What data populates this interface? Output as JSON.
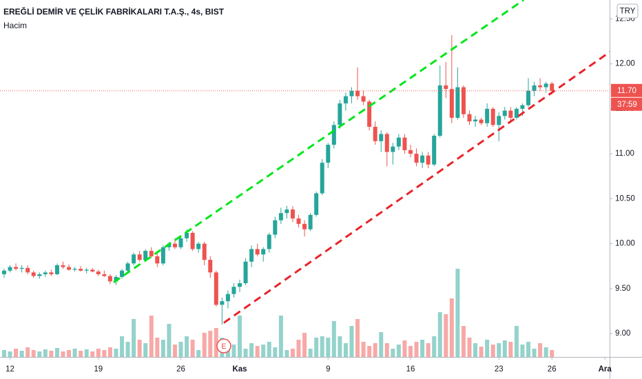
{
  "chart_data": {
    "type": "candlestick",
    "title": "EREĞLİ DEMİR VE ÇELİK FABRİKALARI T.A.Ş., 4s, BIST",
    "subtitle": "Hacim",
    "currency": "TRY",
    "xlim": [
      -0.7,
      102.8
    ],
    "xticks": [
      {
        "value": 1,
        "label": "12"
      },
      {
        "value": 16,
        "label": "19"
      },
      {
        "value": 30,
        "label": "26"
      },
      {
        "value": 40,
        "label": "Kas"
      },
      {
        "value": 55,
        "label": "9"
      },
      {
        "value": 69,
        "label": "16"
      },
      {
        "value": 84,
        "label": "23"
      },
      {
        "value": 93,
        "label": "26"
      },
      {
        "value": 102,
        "label": "Ara"
      }
    ],
    "ylim": [
      8.74,
      12.71
    ],
    "yticks": [
      {
        "value": 9,
        "label": "9.00"
      },
      {
        "value": 9.5,
        "label": "9.50"
      },
      {
        "value": 10,
        "label": "10.00"
      },
      {
        "value": 10.5,
        "label": "10.50"
      },
      {
        "value": 11,
        "label": "11.00"
      },
      {
        "value": 11.5,
        "label": "11.50"
      },
      {
        "value": 12,
        "label": "12.00"
      },
      {
        "value": 12.5,
        "label": "12.50"
      }
    ],
    "grid": false,
    "up_color": "#26a69a",
    "down_color": "#ef5350",
    "open": [
      9.66,
      9.7,
      9.74,
      9.72,
      9.73,
      9.68,
      9.64,
      9.66,
      9.68,
      9.66,
      9.76,
      9.74,
      9.71,
      9.72,
      9.7,
      9.71,
      9.69,
      9.66,
      9.64,
      9.58,
      9.63,
      9.7,
      9.78,
      9.88,
      9.82,
      9.92,
      9.86,
      9.78,
      9.96,
      10.0,
      9.96,
      10.06,
      10.12,
      9.94,
      10.0,
      9.82,
      9.68,
      9.32,
      9.36,
      9.44,
      9.52,
      9.56,
      9.8,
      9.94,
      9.88,
      9.94,
      10.1,
      10.26,
      10.34,
      10.38,
      10.28,
      10.22,
      10.16,
      10.32,
      10.56,
      10.9,
      11.1,
      11.32,
      11.56,
      11.64,
      11.7,
      11.64,
      11.58,
      11.3,
      11.14,
      11.22,
      11.02,
      11.08,
      11.18,
      11.04,
      11.0,
      10.9,
      10.98,
      10.88,
      11.2,
      11.76,
      11.72,
      11.4,
      11.74,
      11.44,
      11.36,
      11.38,
      11.34,
      11.5,
      11.32,
      11.42,
      11.48,
      11.4,
      11.5,
      11.54,
      11.7,
      11.76,
      11.74,
      11.78
    ],
    "high": [
      9.72,
      9.76,
      9.78,
      9.76,
      9.76,
      9.7,
      9.68,
      9.7,
      9.71,
      9.78,
      9.8,
      9.77,
      9.74,
      9.75,
      9.73,
      9.73,
      9.71,
      9.7,
      9.66,
      9.65,
      9.72,
      9.8,
      9.9,
      9.92,
      9.94,
      9.96,
      9.9,
      9.98,
      10.02,
      10.06,
      10.08,
      10.16,
      10.14,
      10.02,
      10.02,
      9.86,
      9.7,
      9.4,
      9.48,
      9.56,
      9.6,
      9.84,
      9.98,
      10.0,
      9.96,
      10.12,
      10.3,
      10.4,
      10.42,
      10.42,
      10.32,
      10.26,
      10.34,
      10.58,
      10.94,
      11.12,
      11.36,
      11.6,
      11.68,
      11.74,
      11.96,
      11.7,
      11.6,
      11.36,
      11.26,
      11.24,
      11.12,
      11.22,
      11.22,
      11.1,
      11.06,
      11.02,
      11.02,
      11.22,
      11.98,
      12.02,
      12.32,
      11.96,
      11.76,
      11.48,
      11.42,
      11.4,
      11.56,
      11.52,
      11.46,
      11.52,
      11.52,
      11.52,
      11.56,
      11.84,
      11.8,
      11.84,
      11.8,
      11.8
    ],
    "low": [
      9.62,
      9.68,
      9.7,
      9.68,
      9.66,
      9.62,
      9.61,
      9.63,
      9.64,
      9.65,
      9.72,
      9.7,
      9.69,
      9.69,
      9.67,
      9.68,
      9.64,
      9.63,
      9.55,
      9.54,
      9.61,
      9.68,
      9.76,
      9.8,
      9.8,
      9.84,
      9.74,
      9.76,
      9.92,
      9.94,
      9.94,
      10.02,
      9.92,
      9.9,
      9.76,
      9.62,
      9.3,
      9.1,
      9.28,
      9.4,
      9.46,
      9.54,
      9.74,
      9.86,
      9.8,
      9.9,
      10.06,
      10.22,
      10.28,
      10.24,
      10.18,
      10.08,
      10.14,
      10.3,
      10.54,
      10.84,
      11.06,
      11.28,
      11.48,
      11.56,
      11.6,
      11.54,
      11.26,
      11.1,
      11.02,
      10.86,
      10.88,
      11.04,
      11.0,
      10.96,
      10.86,
      10.84,
      10.84,
      10.86,
      11.18,
      11.62,
      11.34,
      11.38,
      11.4,
      11.32,
      11.3,
      11.32,
      11.3,
      11.3,
      11.14,
      11.38,
      11.36,
      11.38,
      11.42,
      11.52,
      11.64,
      11.7,
      11.68,
      11.66
    ],
    "close": [
      9.7,
      9.74,
      9.72,
      9.73,
      9.68,
      9.64,
      9.66,
      9.68,
      9.66,
      9.76,
      9.74,
      9.71,
      9.72,
      9.7,
      9.71,
      9.69,
      9.66,
      9.64,
      9.58,
      9.63,
      9.7,
      9.78,
      9.88,
      9.82,
      9.92,
      9.86,
      9.78,
      9.96,
      10.0,
      9.96,
      10.06,
      10.12,
      9.94,
      10.0,
      9.82,
      9.68,
      9.32,
      9.36,
      9.44,
      9.52,
      9.56,
      9.8,
      9.94,
      9.88,
      9.94,
      10.1,
      10.26,
      10.34,
      10.38,
      10.28,
      10.22,
      10.16,
      10.32,
      10.56,
      10.9,
      11.1,
      11.32,
      11.56,
      11.64,
      11.7,
      11.64,
      11.58,
      11.3,
      11.14,
      11.22,
      11.02,
      11.08,
      11.18,
      11.04,
      11.0,
      10.9,
      10.98,
      10.88,
      11.2,
      11.76,
      11.72,
      11.4,
      11.74,
      11.44,
      11.36,
      11.38,
      11.34,
      11.5,
      11.32,
      11.42,
      11.48,
      11.4,
      11.5,
      11.54,
      11.7,
      11.76,
      11.74,
      11.78,
      11.7
    ],
    "volume": {
      "values": [
        10,
        8,
        12,
        9,
        14,
        10,
        8,
        11,
        9,
        13,
        8,
        10,
        12,
        9,
        11,
        8,
        12,
        10,
        14,
        12,
        30,
        22,
        55,
        25,
        20,
        60,
        28,
        25,
        48,
        18,
        22,
        30,
        25,
        10,
        35,
        38,
        42,
        28,
        15,
        18,
        60,
        12,
        20,
        16,
        18,
        22,
        14,
        60,
        10,
        12,
        25,
        35,
        12,
        28,
        30,
        28,
        52,
        30,
        20,
        45,
        55,
        22,
        16,
        20,
        36,
        20,
        12,
        18,
        24,
        16,
        22,
        25,
        20,
        30,
        65,
        62,
        85,
        128,
        45,
        28,
        20,
        15,
        25,
        18,
        20,
        24,
        22,
        45,
        18,
        22,
        12,
        20,
        14,
        10
      ],
      "ylim": [
        0,
        140
      ],
      "up_color": "#93d3cb",
      "down_color": "#f6a9a7"
    },
    "last_price": {
      "value": 11.7,
      "label": "11.70"
    },
    "countdown": "37:59",
    "trendlines": [
      {
        "color": "#00e61a",
        "points": [
          [
            18.6,
            9.57
          ],
          [
            88.2,
            12.71
          ]
        ]
      },
      {
        "color": "#e8242a",
        "points": [
          [
            37.3,
            9.12
          ],
          [
            103,
            12.14
          ]
        ]
      }
    ],
    "events": [
      {
        "label": "E",
        "x": 37.3
      }
    ]
  }
}
